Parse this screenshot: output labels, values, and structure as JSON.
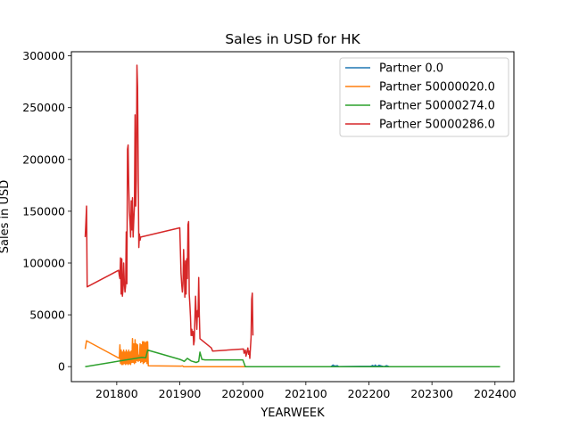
{
  "chart_data": {
    "type": "line",
    "title": "Sales in USD for HK",
    "xlabel": "YEARWEEK",
    "ylabel": "Sales in USD",
    "xlim": [
      201728,
      202430
    ],
    "ylim": [
      -14500,
      304000
    ],
    "xticks": [
      201800,
      201900,
      202000,
      202100,
      202200,
      202300,
      202400
    ],
    "yticks": [
      0,
      50000,
      100000,
      150000,
      200000,
      250000,
      300000
    ],
    "grid": false,
    "legend_position": "top-right",
    "series": [
      {
        "name": "Partner 0.0",
        "color": "#1f77b4",
        "points": [
          [
            202140,
            0
          ],
          [
            202143,
            1500
          ],
          [
            202146,
            600
          ],
          [
            202150,
            900
          ],
          [
            202152,
            0
          ],
          [
            202203,
            300
          ],
          [
            202206,
            1200
          ],
          [
            202208,
            0
          ],
          [
            202210,
            1500
          ],
          [
            202213,
            0
          ],
          [
            202216,
            1300
          ],
          [
            202220,
            600
          ],
          [
            202224,
            0
          ],
          [
            202228,
            900
          ],
          [
            202232,
            0
          ]
        ]
      },
      {
        "name": "Partner 50000020.0",
        "color": "#ff7f0e",
        "points": [
          [
            201750,
            17000
          ],
          [
            201752,
            25000
          ],
          [
            201804,
            8000
          ],
          [
            201805,
            21000
          ],
          [
            201806,
            3000
          ],
          [
            201807,
            16000
          ],
          [
            201808,
            2000
          ],
          [
            201809,
            14000
          ],
          [
            201810,
            2000
          ],
          [
            201811,
            16000
          ],
          [
            201812,
            3000
          ],
          [
            201813,
            14000
          ],
          [
            201814,
            2000
          ],
          [
            201815,
            16000
          ],
          [
            201816,
            3000
          ],
          [
            201817,
            14000
          ],
          [
            201818,
            2000
          ],
          [
            201819,
            16000
          ],
          [
            201820,
            3000
          ],
          [
            201821,
            14000
          ],
          [
            201822,
            2000
          ],
          [
            201823,
            15000
          ],
          [
            201824,
            4000
          ],
          [
            201825,
            27000
          ],
          [
            201826,
            4000
          ],
          [
            201827,
            22000
          ],
          [
            201828,
            3000
          ],
          [
            201829,
            26000
          ],
          [
            201830,
            4000
          ],
          [
            201831,
            22000
          ],
          [
            201832,
            6000
          ],
          [
            201833,
            21000
          ],
          [
            201834,
            5000
          ],
          [
            201835,
            11000
          ],
          [
            201836,
            6000
          ],
          [
            201837,
            22000
          ],
          [
            201838,
            4000
          ],
          [
            201839,
            21000
          ],
          [
            201840,
            5000
          ],
          [
            201841,
            24000
          ],
          [
            201842,
            3000
          ],
          [
            201843,
            24000
          ],
          [
            201844,
            4000
          ],
          [
            201845,
            23000
          ],
          [
            201846,
            5000
          ],
          [
            201847,
            24000
          ],
          [
            201848,
            3000
          ],
          [
            201849,
            24000
          ],
          [
            201850,
            800
          ],
          [
            201902,
            500
          ],
          [
            201904,
            700
          ],
          [
            201906,
            0
          ],
          [
            202000,
            0
          ],
          [
            202408,
            0
          ]
        ]
      },
      {
        "name": "Partner 50000274.0",
        "color": "#2ca02c",
        "points": [
          [
            201750,
            0
          ],
          [
            201830,
            8000
          ],
          [
            201840,
            9000
          ],
          [
            201846,
            8500
          ],
          [
            201849,
            16000
          ],
          [
            201900,
            7000
          ],
          [
            201904,
            6000
          ],
          [
            201907,
            5000
          ],
          [
            201912,
            8000
          ],
          [
            201918,
            5500
          ],
          [
            201926,
            4000
          ],
          [
            201930,
            5000
          ],
          [
            201932,
            14000
          ],
          [
            201935,
            7000
          ],
          [
            201940,
            6500
          ],
          [
            201950,
            6500
          ],
          [
            202000,
            6500
          ],
          [
            202004,
            0
          ],
          [
            202408,
            0
          ]
        ]
      },
      {
        "name": "Partner 50000286.0",
        "color": "#d62728",
        "points": [
          [
            201750,
            125000
          ],
          [
            201751,
            140000
          ],
          [
            201752,
            155000
          ],
          [
            201753,
            77000
          ],
          [
            201803,
            93000
          ],
          [
            201804,
            88000
          ],
          [
            201805,
            85000
          ],
          [
            201806,
            105000
          ],
          [
            201807,
            70000
          ],
          [
            201808,
            104000
          ],
          [
            201809,
            68000
          ],
          [
            201810,
            75000
          ],
          [
            201811,
            100000
          ],
          [
            201812,
            80000
          ],
          [
            201813,
            72000
          ],
          [
            201814,
            78000
          ],
          [
            201815,
            130000
          ],
          [
            201816,
            80000
          ],
          [
            201817,
            210000
          ],
          [
            201818,
            214000
          ],
          [
            201819,
            175000
          ],
          [
            201820,
            150000
          ],
          [
            201821,
            140000
          ],
          [
            201822,
            125000
          ],
          [
            201823,
            160000
          ],
          [
            201824,
            132000
          ],
          [
            201825,
            163000
          ],
          [
            201826,
            125000
          ],
          [
            201827,
            140000
          ],
          [
            201828,
            155000
          ],
          [
            201829,
            243000
          ],
          [
            201830,
            155000
          ],
          [
            201831,
            180000
          ],
          [
            201832,
            291000
          ],
          [
            201833,
            270000
          ],
          [
            201834,
            190000
          ],
          [
            201835,
            115000
          ],
          [
            201836,
            128000
          ],
          [
            201837,
            122000
          ],
          [
            201838,
            125000
          ],
          [
            201900,
            134000
          ],
          [
            201902,
            90000
          ],
          [
            201903,
            80000
          ],
          [
            201904,
            72000
          ],
          [
            201905,
            80000
          ],
          [
            201906,
            113000
          ],
          [
            201907,
            93000
          ],
          [
            201908,
            67000
          ],
          [
            201909,
            102000
          ],
          [
            201910,
            70000
          ],
          [
            201911,
            104000
          ],
          [
            201912,
            85000
          ],
          [
            201913,
            137000
          ],
          [
            201914,
            140000
          ],
          [
            201915,
            70000
          ],
          [
            201916,
            60000
          ],
          [
            201917,
            48000
          ],
          [
            201918,
            30000
          ],
          [
            201919,
            36000
          ],
          [
            201920,
            30000
          ],
          [
            201921,
            34000
          ],
          [
            201922,
            21000
          ],
          [
            201923,
            25000
          ],
          [
            201924,
            48000
          ],
          [
            201925,
            68000
          ],
          [
            201926,
            50000
          ],
          [
            201927,
            36000
          ],
          [
            201928,
            54000
          ],
          [
            201929,
            48000
          ],
          [
            201930,
            86000
          ],
          [
            201931,
            50000
          ],
          [
            201932,
            27000
          ],
          [
            201950,
            18000
          ],
          [
            201952,
            15000
          ],
          [
            202001,
            17000
          ],
          [
            202002,
            13000
          ],
          [
            202003,
            14000
          ],
          [
            202004,
            16000
          ],
          [
            202005,
            10000
          ],
          [
            202008,
            18000
          ],
          [
            202009,
            12000
          ],
          [
            202010,
            15000
          ],
          [
            202011,
            8000
          ],
          [
            202012,
            18000
          ],
          [
            202013,
            28000
          ],
          [
            202014,
            65000
          ],
          [
            202015,
            71000
          ],
          [
            202016,
            30000
          ]
        ]
      }
    ]
  }
}
